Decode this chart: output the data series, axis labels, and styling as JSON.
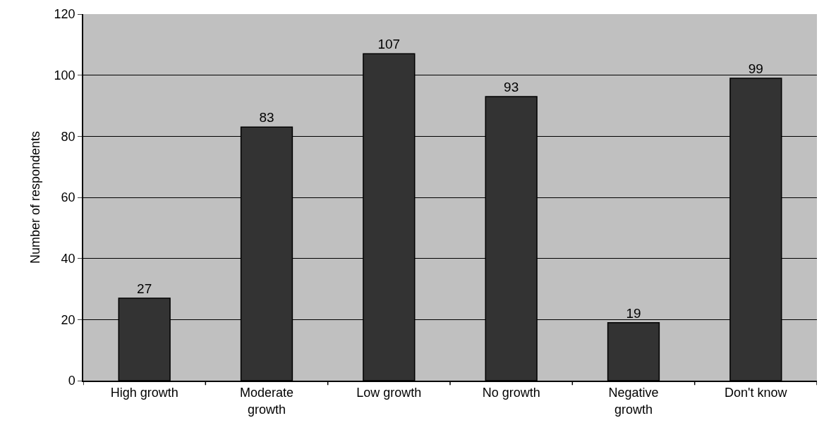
{
  "chart_data": {
    "type": "bar",
    "ylabel": "Number of respondents",
    "categories": [
      "High growth",
      "Moderate growth",
      "Low growth",
      "No growth",
      "Negative growth",
      "Don't know"
    ],
    "values": [
      27,
      83,
      107,
      93,
      19,
      99
    ],
    "color": "#333333",
    "ylim": [
      0,
      120
    ],
    "yticks": [
      0,
      20,
      40,
      60,
      80,
      100,
      120
    ],
    "grid": "y",
    "data_labels": true
  }
}
